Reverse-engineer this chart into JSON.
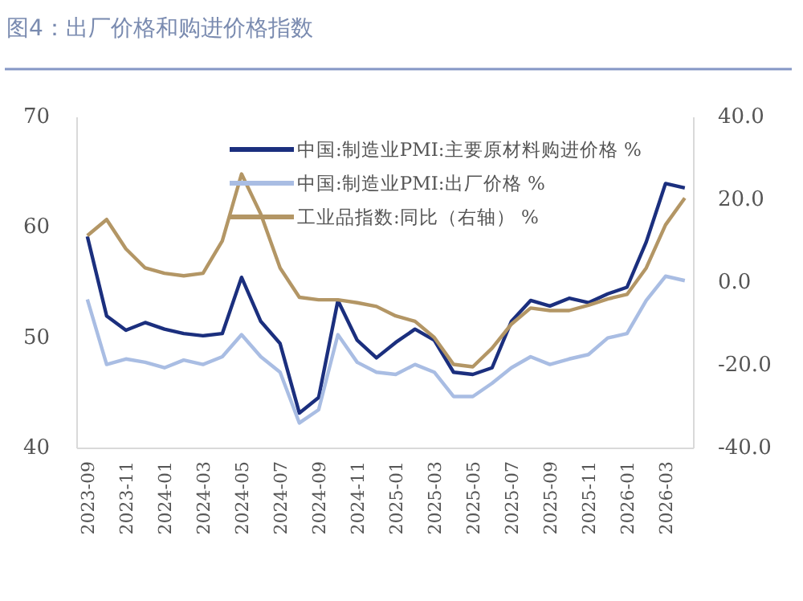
{
  "chart_data": {
    "type": "line",
    "title": "图4：出厂价格和购进价格指数",
    "x": [
      "2023-09",
      "2023-10",
      "2023-11",
      "2023-12",
      "2024-01",
      "2024-02",
      "2024-03",
      "2024-04",
      "2024-05",
      "2024-06",
      "2024-07",
      "2024-08",
      "2024-09",
      "2024-10",
      "2024-11",
      "2024-12",
      "2025-01",
      "2025-02",
      "2025-03",
      "2025-04",
      "2025-05",
      "2025-06",
      "2025-07",
      "2025-08",
      "2025-09",
      "2025-10",
      "2025-11",
      "2025-12",
      "2026-01",
      "2026-02",
      "2026-03",
      "2026-04"
    ],
    "xlim": [
      "2023-08-15",
      "2026-04-15"
    ],
    "xticks": [
      "2023-09",
      "2023-11",
      "2024-01",
      "2024-03",
      "2024-05",
      "2024-07",
      "2024-09",
      "2024-11",
      "2025-01",
      "2025-03",
      "2025-05",
      "2025-07",
      "2025-09",
      "2025-11",
      "2026-01",
      "2026-03"
    ],
    "ylim": [
      40,
      70
    ],
    "yticks": [
      40,
      50,
      60,
      70
    ],
    "y2lim": [
      -40,
      40
    ],
    "y2ticks": [
      {
        "value": -40,
        "label": "-40.0"
      },
      {
        "value": -20,
        "label": "-20.0"
      },
      {
        "value": 0,
        "label": "0.0"
      },
      {
        "value": 20,
        "label": "20.0"
      },
      {
        "value": 40,
        "label": "40.0"
      }
    ],
    "series": [
      {
        "name": "中国:制造业PMI:主要原材料购进价格 %",
        "color": "#1b2f7e",
        "values": [
          59.2,
          52.0,
          50.7,
          51.4,
          50.8,
          50.4,
          50.2,
          50.4,
          55.5,
          51.5,
          49.5,
          43.2,
          44.6,
          53.4,
          49.8,
          48.2,
          49.6,
          50.8,
          49.8,
          46.9,
          46.7,
          47.3,
          51.5,
          53.4,
          52.9,
          53.6,
          53.2,
          54.0,
          54.6,
          58.7,
          64.0,
          63.6
        ]
      },
      {
        "name": "中国:制造业PMI:出厂价格 %",
        "color": "#a9bde3",
        "values": [
          53.5,
          47.6,
          48.1,
          47.8,
          47.3,
          48.0,
          47.6,
          48.3,
          50.3,
          48.3,
          46.9,
          42.3,
          43.5,
          50.3,
          47.8,
          46.9,
          46.7,
          47.6,
          46.9,
          44.7,
          44.7,
          45.9,
          47.3,
          48.3,
          47.6,
          48.1,
          48.5,
          50.0,
          50.4,
          53.4,
          55.6,
          55.2
        ]
      },
      {
        "name": "工业品指数:同比（右轴） %",
        "color": "#b39665",
        "axis": "y2",
        "values": [
          11.4,
          15.3,
          8.2,
          3.6,
          2.3,
          1.7,
          2.3,
          10.1,
          26.3,
          16.6,
          3.6,
          -3.5,
          -4.1,
          -4.1,
          -4.8,
          -5.7,
          -8.0,
          -9.3,
          -13.2,
          -19.7,
          -20.3,
          -15.8,
          -10.0,
          -6.1,
          -6.7,
          -6.7,
          -5.4,
          -3.9,
          -2.8,
          3.6,
          14.0,
          20.5
        ]
      }
    ],
    "legend": "top",
    "grid": false,
    "marker": "none",
    "line_style": "solid"
  }
}
